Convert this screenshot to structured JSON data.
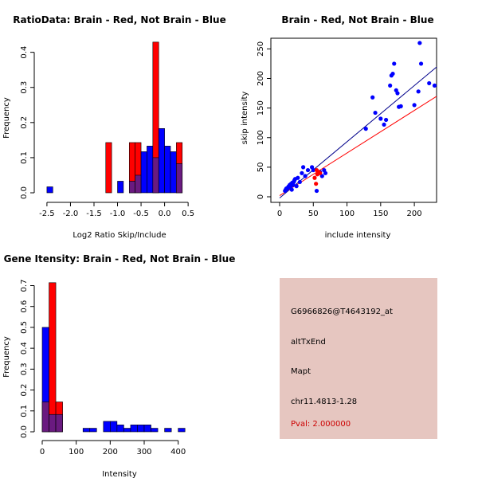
{
  "colors": {
    "red": "#ff0000",
    "blue": "#0000ff",
    "overlap": "#6a1a80",
    "dark_blue": "#00008b",
    "info_bg": "#e6c6c0",
    "pval": "#cc0000"
  },
  "info": {
    "probe": "G6966826@T4643192_at",
    "event": "altTxEnd",
    "gene": "Mapt",
    "location": "chr11.4813-1.28",
    "pval": "Pval: 2.000000"
  },
  "chart_data": [
    {
      "type": "bar",
      "title": "RatioData: Brain - Red, Not Brain - Blue",
      "xlabel": "Log2 Ratio Skip/Include",
      "ylabel": "Frequency",
      "xlim": [
        -2.6,
        0.65
      ],
      "ylim": [
        0,
        0.44
      ],
      "xticks": [
        -2.5,
        -2.0,
        -1.5,
        -1.0,
        -0.5,
        0.0,
        0.5
      ],
      "xtick_labels": [
        "-2.5",
        "-2.0",
        "-1.5",
        "-1.0",
        "-0.5",
        "0.0",
        "0.5"
      ],
      "yticks": [
        0,
        0.1,
        0.2,
        0.3,
        0.4
      ],
      "ytick_labels": [
        "0.0",
        "0.1",
        "0.2",
        "0.3",
        "0.4"
      ],
      "bin_width": 0.125,
      "bins": [
        -2.5,
        -2.375,
        -2.25,
        -2.125,
        -2.0,
        -1.875,
        -1.75,
        -1.625,
        -1.5,
        -1.375,
        -1.25,
        -1.125,
        -1.0,
        -0.875,
        -0.75,
        -0.625,
        -0.5,
        -0.375,
        -0.25,
        -0.125,
        0.0,
        0.125,
        0.25,
        0.375,
        0.5
      ],
      "series": [
        {
          "name": "Brain",
          "color": "red",
          "values": [
            0,
            0,
            0,
            0,
            0,
            0,
            0,
            0,
            0,
            0,
            0.143,
            0,
            0,
            0,
            0.143,
            0.143,
            0,
            0,
            0.429,
            0,
            0,
            0,
            0.143,
            0,
            0
          ]
        },
        {
          "name": "Not Brain",
          "color": "blue",
          "values": [
            0.017,
            0,
            0,
            0,
            0,
            0,
            0,
            0,
            0,
            0,
            0,
            0,
            0.033,
            0,
            0.033,
            0.05,
            0.117,
            0.133,
            0.1,
            0.183,
            0.133,
            0.117,
            0.083,
            0,
            0
          ]
        }
      ]
    },
    {
      "type": "scatter",
      "title": "Brain - Red, Not Brain - Blue",
      "xlabel": "include intensity",
      "ylabel": "skip intensity",
      "xlim": [
        0,
        233
      ],
      "ylim": [
        0,
        268
      ],
      "xticks": [
        0,
        50,
        100,
        150,
        200
      ],
      "xtick_labels": [
        "0",
        "50",
        "100",
        "150",
        "200"
      ],
      "yticks": [
        0,
        50,
        100,
        150,
        200,
        250
      ],
      "ytick_labels": [
        "0",
        "50",
        "100",
        "150",
        "200",
        "250"
      ],
      "series": [
        {
          "name": "Not Brain",
          "color": "blue",
          "points": [
            [
              8,
              10
            ],
            [
              9,
              12
            ],
            [
              10,
              14
            ],
            [
              11,
              13
            ],
            [
              12,
              15
            ],
            [
              13,
              17
            ],
            [
              14,
              18
            ],
            [
              15,
              20
            ],
            [
              16,
              16
            ],
            [
              17,
              22
            ],
            [
              18,
              12
            ],
            [
              19,
              24
            ],
            [
              20,
              20
            ],
            [
              21,
              25
            ],
            [
              22,
              28
            ],
            [
              23,
              30
            ],
            [
              25,
              18
            ],
            [
              27,
              32
            ],
            [
              30,
              25
            ],
            [
              33,
              40
            ],
            [
              35,
              50
            ],
            [
              38,
              35
            ],
            [
              42,
              45
            ],
            [
              48,
              50
            ],
            [
              50,
              45
            ],
            [
              55,
              10
            ],
            [
              60,
              42
            ],
            [
              63,
              35
            ],
            [
              66,
              45
            ],
            [
              68,
              40
            ],
            [
              128,
              115
            ],
            [
              138,
              168
            ],
            [
              142,
              142
            ],
            [
              150,
              132
            ],
            [
              155,
              122
            ],
            [
              158,
              130
            ],
            [
              164,
              188
            ],
            [
              166,
              205
            ],
            [
              168,
              208
            ],
            [
              170,
              225
            ],
            [
              173,
              180
            ],
            [
              175,
              175
            ],
            [
              177,
              152
            ],
            [
              180,
              153
            ],
            [
              200,
              155
            ],
            [
              206,
              178
            ],
            [
              208,
              260
            ],
            [
              210,
              225
            ],
            [
              222,
              192
            ],
            [
              230,
              188
            ]
          ]
        },
        {
          "name": "Brain",
          "color": "red",
          "points": [
            [
              52,
              32
            ],
            [
              54,
              22
            ],
            [
              55,
              45
            ],
            [
              58,
              42
            ],
            [
              60,
              40
            ],
            [
              56,
              38
            ]
          ]
        }
      ],
      "fit_lines": [
        {
          "name": "Not Brain fit",
          "color": "dark_blue",
          "slope": 0.95,
          "intercept": -2
        },
        {
          "name": "Brain fit",
          "color": "red",
          "slope": 0.72,
          "intercept": 2
        }
      ]
    },
    {
      "type": "bar",
      "title": "Gene Itensity: Brain - Red, Not Brain - Blue",
      "xlabel": "Intensity",
      "ylabel": "Frequency",
      "xlim": [
        0,
        450
      ],
      "ylim": [
        0,
        0.74
      ],
      "xticks": [
        0,
        100,
        200,
        300,
        400
      ],
      "xtick_labels": [
        "0",
        "100",
        "200",
        "300",
        "400"
      ],
      "yticks": [
        0,
        0.1,
        0.2,
        0.3,
        0.4,
        0.5,
        0.6,
        0.7
      ],
      "ytick_labels": [
        "0.0",
        "0.1",
        "0.2",
        "0.3",
        "0.4",
        "0.5",
        "0.6",
        "0.7"
      ],
      "bin_width": 20,
      "bins": [
        0,
        20,
        40,
        60,
        80,
        100,
        120,
        140,
        160,
        180,
        200,
        220,
        240,
        260,
        280,
        300,
        320,
        340,
        360,
        380,
        400,
        420
      ],
      "series": [
        {
          "name": "Brain",
          "color": "red",
          "values": [
            0.143,
            0.714,
            0.143,
            0,
            0,
            0,
            0,
            0,
            0,
            0,
            0,
            0,
            0,
            0,
            0,
            0,
            0,
            0,
            0,
            0,
            0,
            0
          ]
        },
        {
          "name": "Not Brain",
          "color": "blue",
          "values": [
            0.5,
            0.083,
            0.083,
            0,
            0,
            0,
            0.017,
            0.017,
            0,
            0.05,
            0.05,
            0.033,
            0.017,
            0.033,
            0.033,
            0.033,
            0.017,
            0,
            0.017,
            0,
            0.017,
            0
          ]
        }
      ]
    }
  ]
}
